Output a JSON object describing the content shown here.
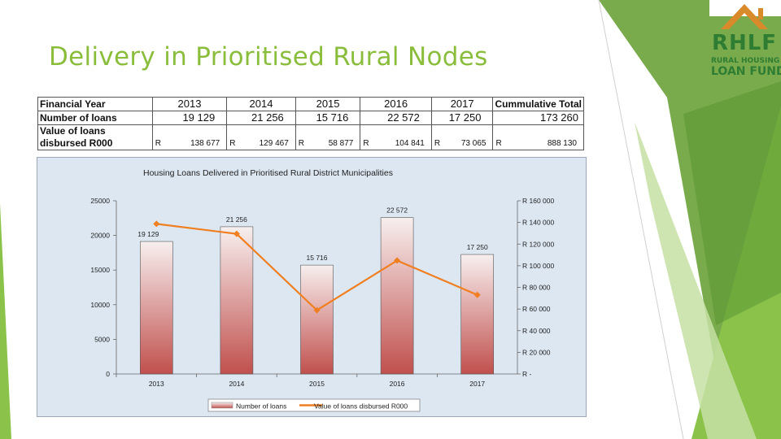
{
  "slide": {
    "title": "Delivery in Prioritised Rural Nodes"
  },
  "logo": {
    "name": "RHLF",
    "line1": "RURAL HOUSING",
    "line2": "LOAN FUND"
  },
  "colors": {
    "title": "#8bbd3c",
    "deco_greens": [
      "#6aa23a",
      "#8bc34a",
      "#c5e1a5",
      "#4e8a2a"
    ],
    "bar_top": "#f5eaea",
    "bar_bottom": "#c0504d",
    "line": "#f07f21",
    "chart_bg": "#dde7f2"
  },
  "table": {
    "header_label": "Financial Year",
    "years": [
      "2013",
      "2014",
      "2015",
      "2016",
      "2017"
    ],
    "total_label": "Cummulative Total",
    "row1_label": "Number of loans",
    "row1_values": [
      "19 129",
      "21 256",
      "15 716",
      "22 572",
      "17 250"
    ],
    "row1_total": "173 260",
    "row2_label_a": "Value of loans",
    "row2_label_b": "disbursed R000",
    "currency": "R",
    "row2_values": [
      "138 677",
      "129 467",
      "58 877",
      "104 841",
      "73 065"
    ],
    "row2_total": "888 130"
  },
  "chart_data": {
    "type": "bar",
    "title": "Housing Loans Delivered in Prioritised Rural District Municipalities",
    "categories": [
      "2013",
      "2014",
      "2015",
      "2016",
      "2017"
    ],
    "y_left": {
      "min": 0,
      "max": 25000,
      "ticks": [
        "0",
        "5000",
        "10000",
        "15000",
        "20000",
        "25000"
      ]
    },
    "y_right": {
      "min": 0,
      "max": 160000,
      "ticks": [
        "R -",
        "R 20 000",
        "R 40 000",
        "R 60 000",
        "R 80 000",
        "R 100 000",
        "R 120 000",
        "R 140 000",
        "R 160 000"
      ]
    },
    "series": [
      {
        "name": "Number of loans",
        "type": "bar",
        "axis": "left",
        "values": [
          19129,
          21256,
          15716,
          22572,
          17250
        ],
        "labels": [
          "19 129",
          "21 256",
          "15 716",
          "22 572",
          "17 250"
        ]
      },
      {
        "name": "Value of loans disbursed R000",
        "type": "line",
        "axis": "right",
        "values": [
          138677,
          129467,
          58877,
          104841,
          73065
        ]
      }
    ],
    "legend_position": "bottom"
  }
}
